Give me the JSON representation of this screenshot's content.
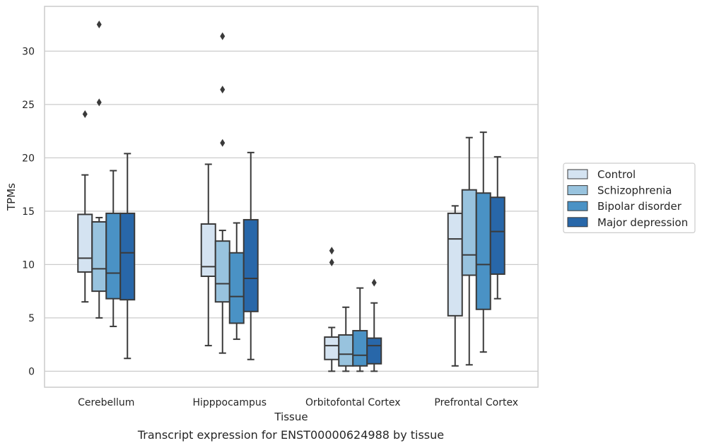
{
  "caption": "Transcript expression for ENST00000624988 by tissue",
  "colors": {
    "series": [
      "#d4e3f1",
      "#98c3de",
      "#4a92c5",
      "#2867a9"
    ],
    "box_edge": "#3a3a3a",
    "grid": "#cccccc",
    "frame": "#cccccc"
  },
  "chart_data": {
    "type": "box",
    "xlabel": "Tissue",
    "ylabel": "TPMs",
    "ylim": [
      -1.5,
      34.2
    ],
    "yticks": [
      0,
      5,
      10,
      15,
      20,
      25,
      30
    ],
    "grid": "horizontal",
    "legend_position": "right",
    "categories": [
      "Cerebellum",
      "Hipppocampus",
      "Orbitofontal Cortex",
      "Prefrontal Cortex"
    ],
    "series": [
      {
        "name": "Control",
        "boxes": [
          {
            "whislo": 6.5,
            "q1": 9.3,
            "med": 10.6,
            "q3": 14.7,
            "whishi": 18.4,
            "fliers": [
              24.1
            ]
          },
          {
            "whislo": 2.4,
            "q1": 8.9,
            "med": 9.8,
            "q3": 13.8,
            "whishi": 19.4,
            "fliers": []
          },
          {
            "whislo": 0.0,
            "q1": 1.1,
            "med": 2.4,
            "q3": 3.2,
            "whishi": 4.1,
            "fliers": [
              10.2,
              11.3
            ]
          },
          {
            "whislo": 0.5,
            "q1": 5.2,
            "med": 12.4,
            "q3": 14.8,
            "whishi": 15.5,
            "fliers": []
          }
        ]
      },
      {
        "name": "Schizophrenia",
        "boxes": [
          {
            "whislo": 5.0,
            "q1": 7.5,
            "med": 9.6,
            "q3": 14.0,
            "whishi": 14.4,
            "fliers": [
              25.2,
              32.5
            ]
          },
          {
            "whislo": 1.7,
            "q1": 6.5,
            "med": 8.2,
            "q3": 12.2,
            "whishi": 13.2,
            "fliers": [
              21.4,
              26.4,
              31.4
            ]
          },
          {
            "whislo": 0.0,
            "q1": 0.5,
            "med": 1.6,
            "q3": 3.4,
            "whishi": 6.0,
            "fliers": []
          },
          {
            "whislo": 0.6,
            "q1": 9.0,
            "med": 10.9,
            "q3": 17.0,
            "whishi": 21.9,
            "fliers": []
          }
        ]
      },
      {
        "name": "Bipolar disorder",
        "boxes": [
          {
            "whislo": 4.2,
            "q1": 6.8,
            "med": 9.2,
            "q3": 14.8,
            "whishi": 18.8,
            "fliers": []
          },
          {
            "whislo": 3.0,
            "q1": 4.5,
            "med": 7.0,
            "q3": 11.1,
            "whishi": 13.9,
            "fliers": []
          },
          {
            "whislo": 0.0,
            "q1": 0.5,
            "med": 1.5,
            "q3": 3.8,
            "whishi": 7.8,
            "fliers": []
          },
          {
            "whislo": 1.8,
            "q1": 5.8,
            "med": 10.0,
            "q3": 16.7,
            "whishi": 22.4,
            "fliers": []
          }
        ]
      },
      {
        "name": "Major depression",
        "boxes": [
          {
            "whislo": 1.2,
            "q1": 6.7,
            "med": 11.1,
            "q3": 14.8,
            "whishi": 20.4,
            "fliers": []
          },
          {
            "whislo": 1.1,
            "q1": 5.6,
            "med": 8.7,
            "q3": 14.2,
            "whishi": 20.5,
            "fliers": []
          },
          {
            "whislo": 0.0,
            "q1": 0.7,
            "med": 2.4,
            "q3": 3.1,
            "whishi": 6.4,
            "fliers": [
              8.3
            ]
          },
          {
            "whislo": 6.8,
            "q1": 9.1,
            "med": 13.1,
            "q3": 16.3,
            "whishi": 20.1,
            "fliers": []
          }
        ]
      }
    ]
  }
}
